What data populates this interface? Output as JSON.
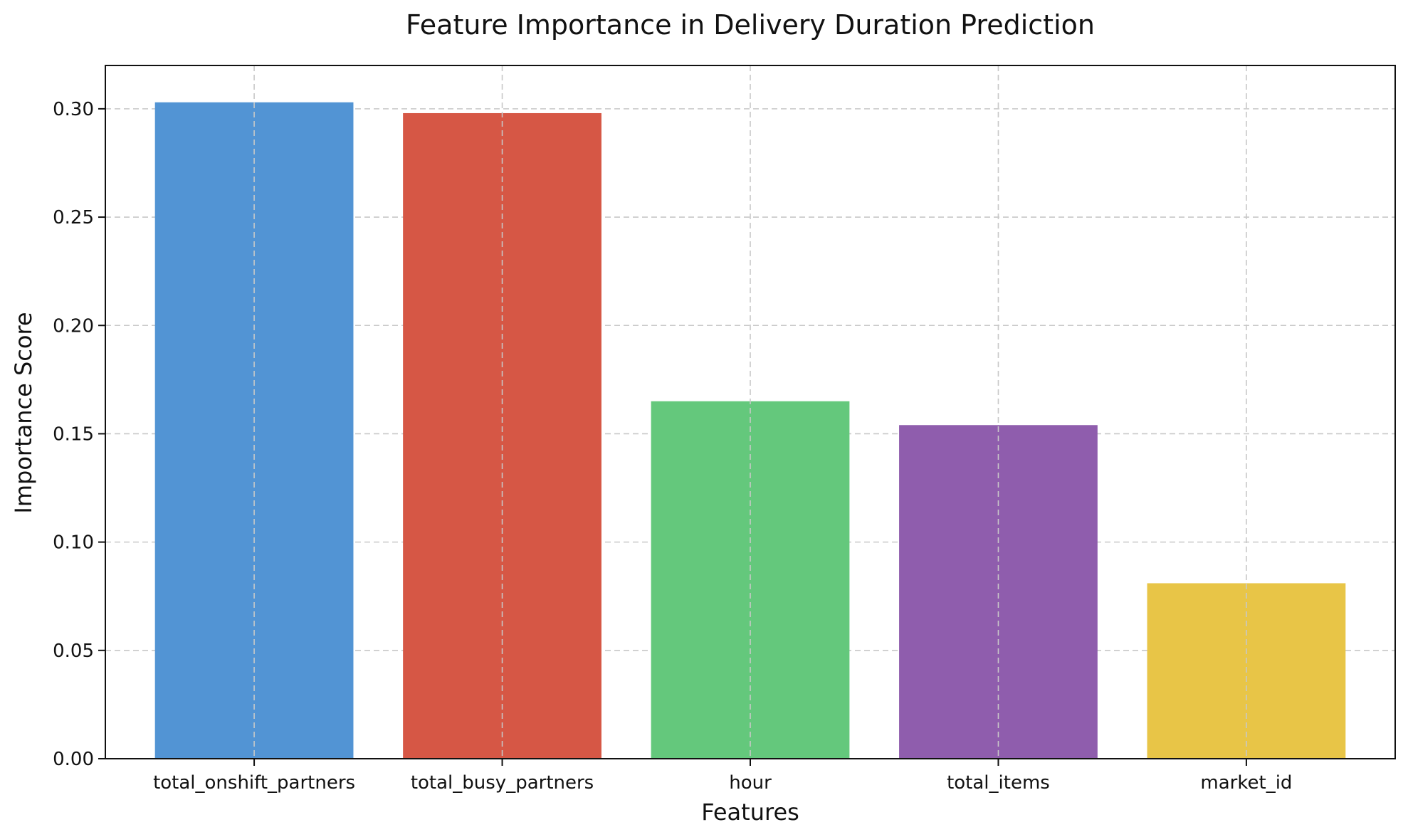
{
  "chart_data": {
    "type": "bar",
    "title": "Feature Importance in Delivery Duration Prediction",
    "xlabel": "Features",
    "ylabel": "Importance Score",
    "categories": [
      "total_onshift_partners",
      "total_busy_partners",
      "hour",
      "total_items",
      "market_id"
    ],
    "values": [
      0.303,
      0.298,
      0.165,
      0.154,
      0.081
    ],
    "colors": [
      "#5294d4",
      "#d65745",
      "#64c87c",
      "#8f5dad",
      "#e8c547"
    ],
    "ylim": [
      0,
      0.32
    ],
    "yticks": [
      0.0,
      0.05,
      0.1,
      0.15,
      0.2,
      0.25,
      0.3
    ],
    "ytick_labels": [
      "0.00",
      "0.05",
      "0.10",
      "0.15",
      "0.20",
      "0.25",
      "0.30"
    ],
    "grid": true,
    "legend": "none"
  }
}
